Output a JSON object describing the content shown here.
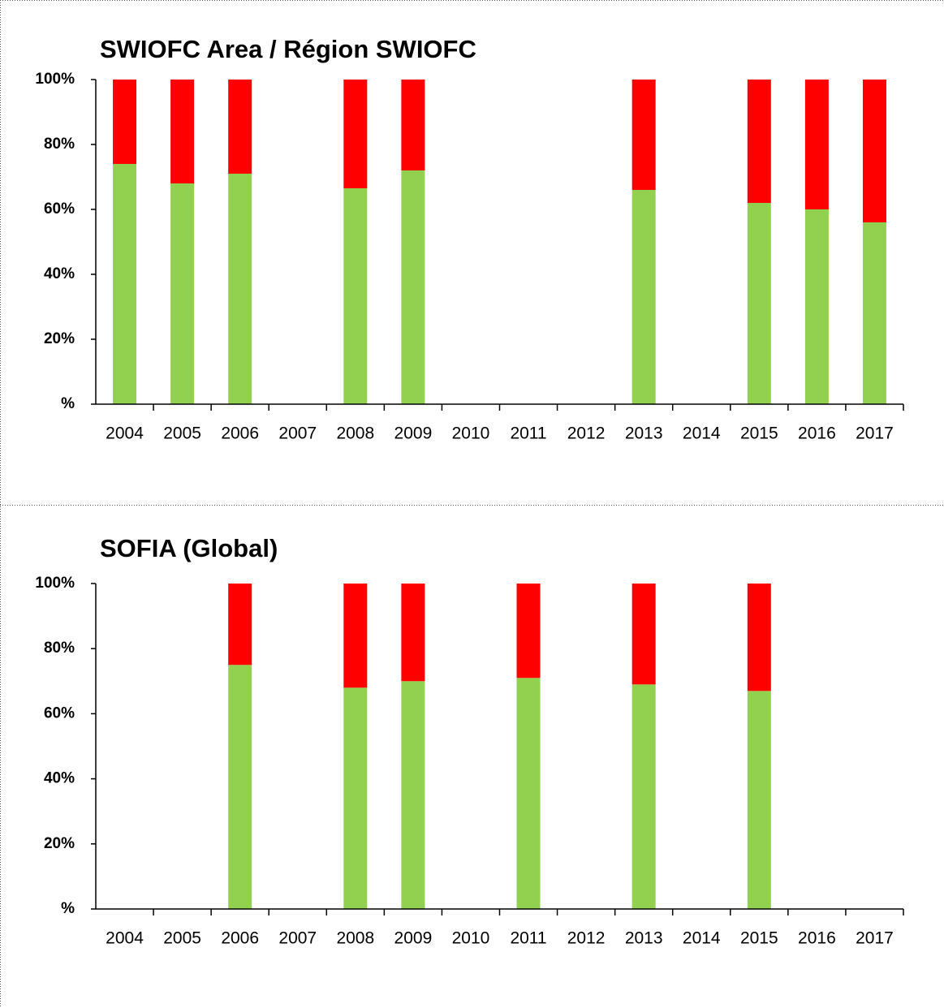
{
  "chart_data": [
    {
      "type": "stacked_bar",
      "title": "SWIOFC Area / Région SWIOFC",
      "categories": [
        "2004",
        "2005",
        "2006",
        "2007",
        "2008",
        "2009",
        "2010",
        "2011",
        "2012",
        "2013",
        "2014",
        "2015",
        "2016",
        "2017"
      ],
      "series": [
        {
          "color": "#92d050",
          "values": [
            74,
            68,
            71,
            null,
            66.5,
            72,
            null,
            null,
            null,
            66,
            null,
            62,
            60,
            56
          ]
        },
        {
          "color": "#ff0000",
          "values": [
            26,
            32,
            29,
            null,
            33.5,
            28,
            null,
            null,
            null,
            34,
            null,
            38,
            40,
            44
          ]
        }
      ],
      "ylim": [
        0,
        100
      ],
      "yticks": [
        {
          "value": 0,
          "label": "%"
        },
        {
          "value": 20,
          "label": "20%"
        },
        {
          "value": 40,
          "label": "40%"
        },
        {
          "value": 60,
          "label": "60%"
        },
        {
          "value": 80,
          "label": "80%"
        },
        {
          "value": 100,
          "label": "100%"
        }
      ]
    },
    {
      "type": "stacked_bar",
      "title": "SOFIA (Global)",
      "categories": [
        "2004",
        "2005",
        "2006",
        "2007",
        "2008",
        "2009",
        "2010",
        "2011",
        "2012",
        "2013",
        "2014",
        "2015",
        "2016",
        "2017"
      ],
      "series": [
        {
          "color": "#92d050",
          "values": [
            null,
            null,
            75,
            null,
            68,
            70,
            null,
            71,
            null,
            69,
            null,
            67,
            null,
            null
          ]
        },
        {
          "color": "#ff0000",
          "values": [
            null,
            null,
            25,
            null,
            32,
            30,
            null,
            29,
            null,
            31,
            null,
            33,
            null,
            null
          ]
        }
      ],
      "ylim": [
        0,
        100
      ],
      "yticks": [
        {
          "value": 0,
          "label": "%"
        },
        {
          "value": 20,
          "label": "20%"
        },
        {
          "value": 40,
          "label": "40%"
        },
        {
          "value": 60,
          "label": "60%"
        },
        {
          "value": 80,
          "label": "80%"
        },
        {
          "value": 100,
          "label": "100%"
        }
      ]
    }
  ]
}
